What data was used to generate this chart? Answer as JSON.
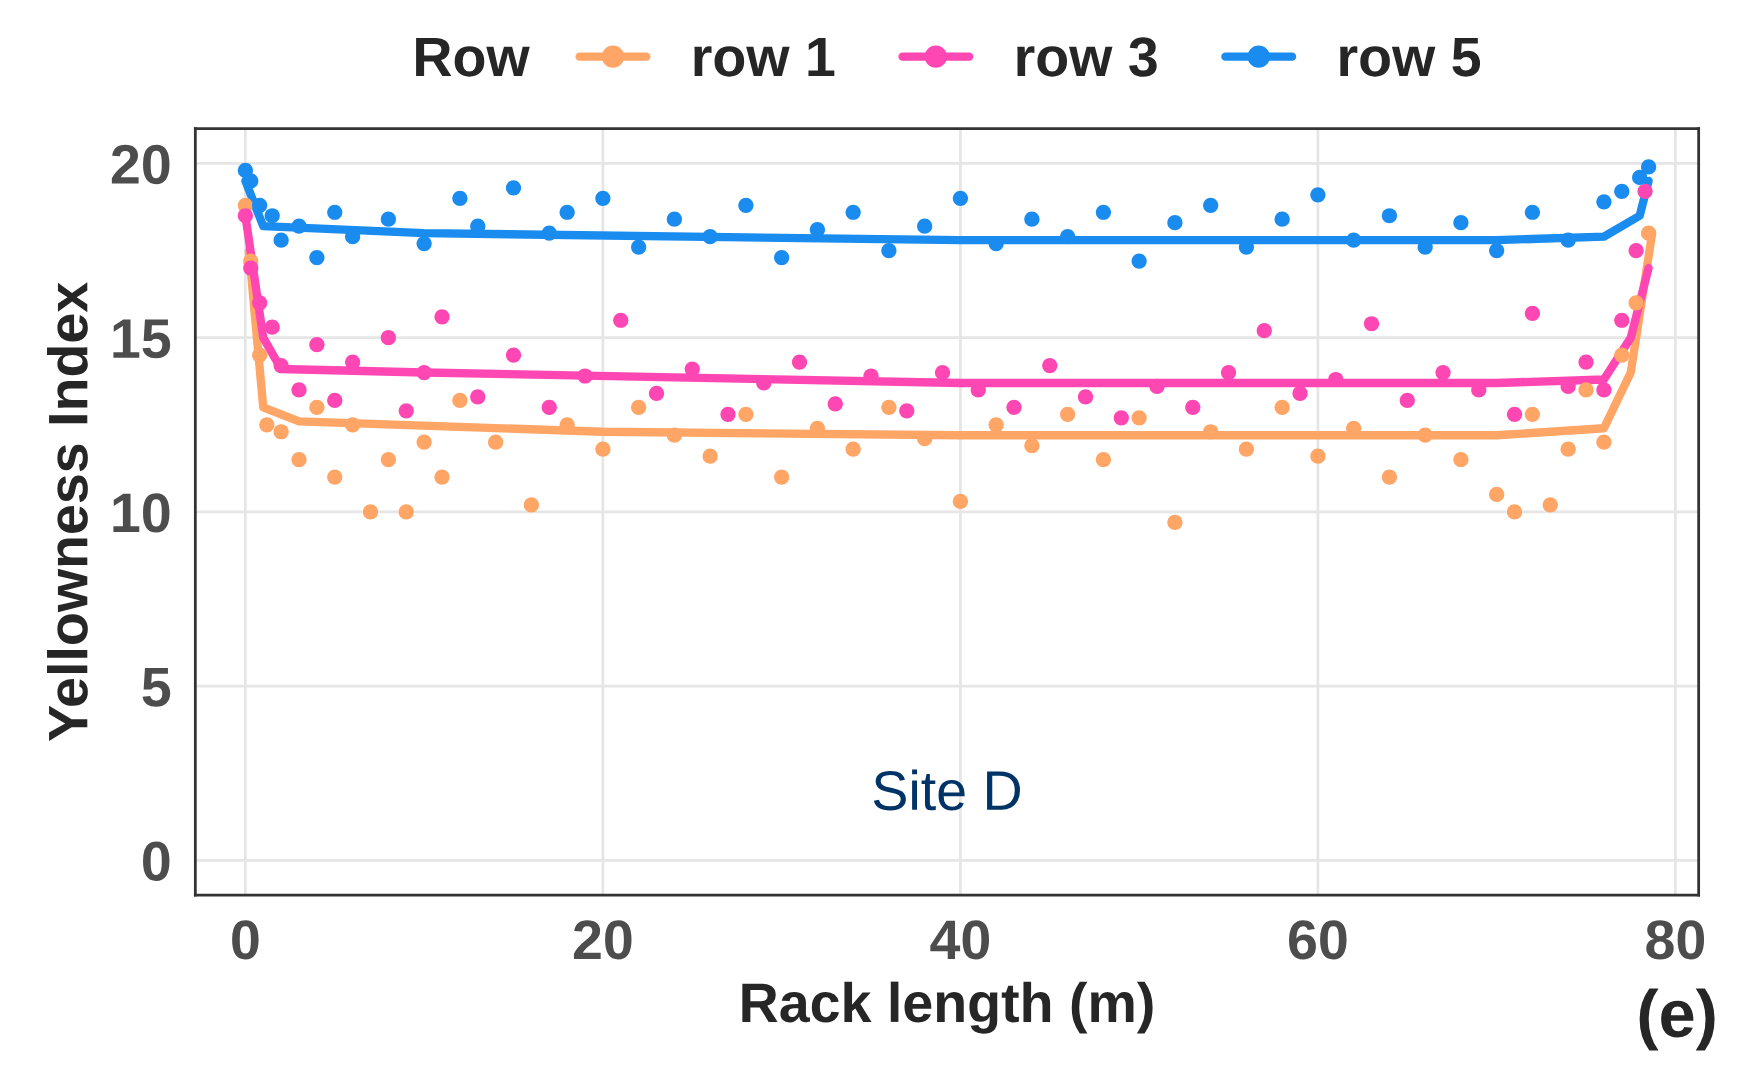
{
  "chart_data": {
    "type": "scatter",
    "xlabel": "Rack length (m)",
    "ylabel": "Yellowness Index",
    "legend_title": "Row",
    "legend": "top",
    "grid": true,
    "xlim": [
      -2.8,
      81.3
    ],
    "ylim": [
      -1,
      21
    ],
    "xticks": [
      0,
      20,
      40,
      60,
      80
    ],
    "yticks": [
      0,
      5,
      10,
      15,
      20
    ],
    "annotations": [
      "Site D",
      "(e)"
    ],
    "series": [
      {
        "name": "row 1",
        "marker": "circle",
        "color": "#ffa566",
        "x": [
          0,
          0.3,
          0.8,
          1.2,
          2,
          3,
          4,
          5,
          6,
          7,
          8,
          9,
          10,
          11,
          12,
          14,
          16,
          18,
          20,
          22,
          24,
          26,
          28,
          30,
          32,
          34,
          36,
          38,
          40,
          42,
          44,
          46,
          48,
          50,
          52,
          54,
          56,
          58,
          60,
          62,
          64,
          66,
          68,
          70,
          71,
          72,
          73,
          74,
          75,
          76,
          77,
          77.8,
          78.5
        ],
        "values": [
          18.8,
          17.2,
          14.5,
          12.5,
          12.3,
          11.5,
          13.0,
          11.0,
          12.5,
          10.0,
          11.5,
          10.0,
          12.0,
          11.0,
          13.2,
          12.0,
          10.2,
          12.5,
          11.8,
          13.0,
          12.2,
          11.6,
          12.8,
          11.0,
          12.4,
          11.8,
          13.0,
          12.1,
          10.3,
          12.5,
          11.9,
          12.8,
          11.5,
          12.7,
          9.7,
          12.3,
          11.8,
          13.0,
          11.6,
          12.4,
          11.0,
          12.2,
          11.5,
          10.5,
          10.0,
          12.8,
          10.2,
          11.8,
          13.5,
          12.0,
          14.5,
          16.0,
          18.0
        ]
      },
      {
        "name": "row 3",
        "marker": "circle",
        "color": "#ff47b3",
        "x": [
          0,
          0.3,
          0.8,
          1.5,
          2,
          3,
          4,
          5,
          6,
          8,
          9,
          10,
          11,
          13,
          15,
          17,
          19,
          21,
          23,
          25,
          27,
          29,
          31,
          33,
          35,
          37,
          39,
          41,
          43,
          45,
          47,
          49,
          51,
          53,
          55,
          57,
          59,
          61,
          63,
          65,
          67,
          69,
          71,
          72,
          74,
          75,
          76,
          77,
          77.8,
          78.3
        ],
        "values": [
          18.5,
          17.0,
          16.0,
          15.3,
          14.2,
          13.5,
          14.8,
          13.2,
          14.3,
          15.0,
          12.9,
          14.0,
          15.6,
          13.3,
          14.5,
          13.0,
          13.9,
          15.5,
          13.4,
          14.1,
          12.8,
          13.7,
          14.3,
          13.1,
          13.9,
          12.9,
          14.0,
          13.5,
          13.0,
          14.2,
          13.3,
          12.7,
          13.6,
          13.0,
          14.0,
          15.2,
          13.4,
          13.8,
          15.4,
          13.2,
          14.0,
          13.5,
          12.8,
          15.7,
          13.6,
          14.3,
          13.5,
          15.5,
          17.5,
          19.2
        ]
      },
      {
        "name": "row 5",
        "marker": "circle",
        "color": "#1a8cf0",
        "x": [
          0,
          0.3,
          0.8,
          1.5,
          2,
          3,
          4,
          5,
          6,
          8,
          10,
          12,
          13,
          15,
          17,
          18,
          20,
          22,
          24,
          26,
          28,
          30,
          32,
          34,
          36,
          38,
          40,
          42,
          44,
          46,
          48,
          50,
          52,
          54,
          56,
          58,
          60,
          62,
          64,
          66,
          68,
          70,
          72,
          74,
          76,
          77,
          78,
          78.5
        ],
        "values": [
          19.8,
          19.5,
          18.8,
          18.5,
          17.8,
          18.2,
          17.3,
          18.6,
          17.9,
          18.4,
          17.7,
          19.0,
          18.2,
          19.3,
          18.0,
          18.6,
          19.0,
          17.6,
          18.4,
          17.9,
          18.8,
          17.3,
          18.1,
          18.6,
          17.5,
          18.2,
          19.0,
          17.7,
          18.4,
          17.9,
          18.6,
          17.2,
          18.3,
          18.8,
          17.6,
          18.4,
          19.1,
          17.8,
          18.5,
          17.6,
          18.3,
          17.5,
          18.6,
          17.8,
          18.9,
          19.2,
          19.6,
          19.9
        ]
      },
      {
        "type": "line",
        "color": "#ffa566",
        "x": [
          0.2,
          1,
          3,
          20,
          40,
          70,
          76,
          77.5,
          78.7
        ],
        "values": [
          17.5,
          13.0,
          12.6,
          12.3,
          12.2,
          12.2,
          12.4,
          14.0,
          18.0
        ]
      },
      {
        "type": "line",
        "color": "#ff47b3",
        "x": [
          0,
          1,
          2,
          10,
          40,
          70,
          76,
          77.5,
          78.5
        ],
        "values": [
          18.5,
          15.0,
          14.1,
          14.0,
          13.7,
          13.7,
          13.8,
          15.0,
          17.0
        ]
      },
      {
        "type": "line",
        "color": "#1a8cf0",
        "x": [
          0,
          1,
          10,
          40,
          70,
          76,
          78,
          78.5
        ],
        "values": [
          19.5,
          18.2,
          18.0,
          17.8,
          17.8,
          17.9,
          18.5,
          19.5
        ]
      }
    ]
  }
}
